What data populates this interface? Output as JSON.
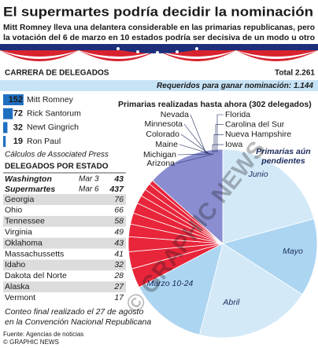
{
  "header": {
    "title": "El supermartes podría decidir la nominación",
    "subtitle": [
      "Mitt Romney lleva una delantera considerable en las primarias republicanas, pero",
      "la votación del 6 de marzo en 10 estados podría ser decisiva de un modo u otro"
    ]
  },
  "delegates": {
    "title": "CARRERA DE DELEGADOS",
    "total": "Total 2.261",
    "required": "Requeridos para ganar nominación: 1.144",
    "color": "#1f6fc1",
    "candidates": [
      {
        "name": "Mitt Romney",
        "value": 152
      },
      {
        "name": "Rick Santorum",
        "value": 72
      },
      {
        "name": "Newt Gingrich",
        "value": 32
      },
      {
        "name": "Ron Paul",
        "value": 19
      }
    ],
    "note": "Cálculos de Associated Press"
  },
  "states": {
    "title": "DELEGADOS POR ESTADO",
    "highlights": [
      {
        "name": "Washington",
        "date": "Mar 3",
        "value": 43
      },
      {
        "name": "Supermartes",
        "date": "Mar 6",
        "value": 437
      }
    ],
    "rows": [
      {
        "name": "Georgia",
        "value": 76
      },
      {
        "name": "Ohio",
        "value": 66
      },
      {
        "name": "Tennessee",
        "value": 58
      },
      {
        "name": "Virginia",
        "value": 49
      },
      {
        "name": "Oklahoma",
        "value": 43
      },
      {
        "name": "Massachussetts",
        "value": 41
      },
      {
        "name": "Idaho",
        "value": 32
      },
      {
        "name": "Dakota del Norte",
        "value": 28
      },
      {
        "name": "Alaska",
        "value": 27
      },
      {
        "name": "Vermont",
        "value": 17
      }
    ]
  },
  "chart_data": {
    "type": "pie",
    "done_label": "Primarias realizadas hasta ahora (302 delegados)",
    "done_value": 302,
    "done_color": "#8a8dd0",
    "done_states_left": [
      "Nevada",
      "Minnesota",
      "Colorado",
      "Maine",
      "Michigan",
      "Arizona"
    ],
    "done_states_right": [
      "Florida",
      "Carolina del Sur",
      "Nueva Hampshire",
      "Iowa"
    ],
    "supermartes_color": "#e8253a",
    "pending_label": "Primarias aún pendientes",
    "categories": [
      "Junio",
      "Mayo",
      "Abril",
      "Marzo 10-24"
    ],
    "values": [
      470,
      300,
      450,
      302
    ],
    "colors": [
      "#d3e9f8",
      "#acd5f1",
      "#d3e9f8",
      "#acd5f1"
    ]
  },
  "footnote": [
    "Conteo final realizado el 27 de agosto",
    "en la Convención Nacional Republicana"
  ],
  "source": "Fuente: Agencias de noticias",
  "credit": "© GRAPHIC NEWS",
  "watermark": "© GRAPHIC NEWS"
}
